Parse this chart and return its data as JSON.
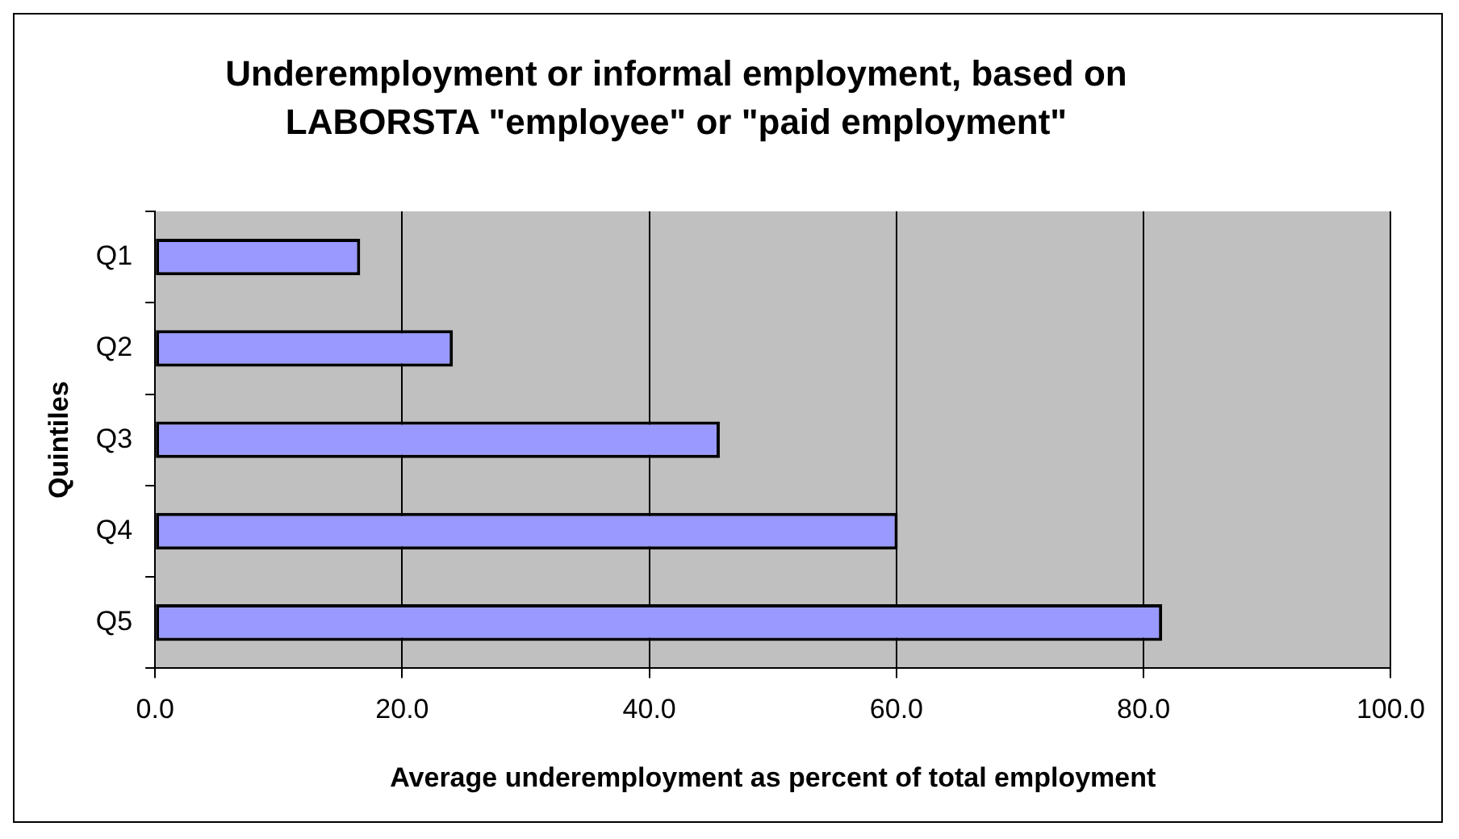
{
  "chart_data": {
    "type": "bar",
    "orientation": "horizontal",
    "title": "Underemployment or informal employment, based on LABORSTA \"employee\" or \"paid employment\"",
    "xlabel": "Average underemployment as percent of total employment",
    "ylabel": "Quintiles",
    "categories": [
      "Q1",
      "Q2",
      "Q3",
      "Q4",
      "Q5"
    ],
    "values": [
      16.6,
      24.1,
      45.7,
      60.1,
      81.5
    ],
    "color": "#9999ff",
    "xlim": [
      0,
      100
    ],
    "xticks": [
      {
        "value": 0,
        "label": "0.0"
      },
      {
        "value": 20,
        "label": "20.0"
      },
      {
        "value": 40,
        "label": "40.0"
      },
      {
        "value": 60,
        "label": "60.0"
      },
      {
        "value": 80,
        "label": "80.0"
      },
      {
        "value": 100,
        "label": "100.0"
      }
    ],
    "grid": "x",
    "legend": false
  }
}
